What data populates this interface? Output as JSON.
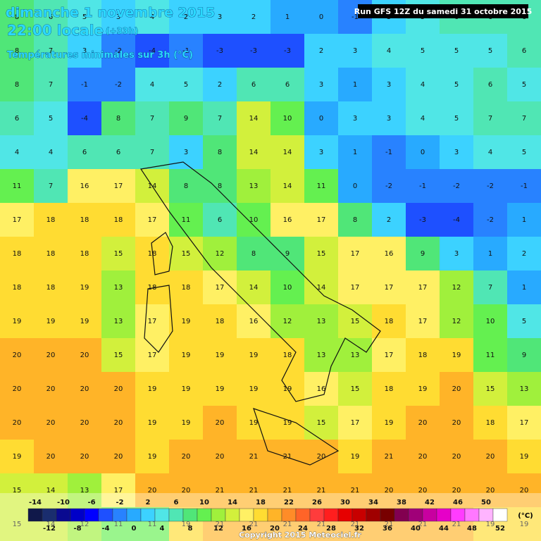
{
  "header": {
    "date": "dimanche 1 novembre 2015",
    "time": "22:00 locale",
    "offset": "(+33h)",
    "subtitle": "Températures minimales sur 3h (°C)",
    "run": "Run GFS 12Z du samedi 31 octobre 2015"
  },
  "grid": {
    "rows": [
      [
        8,
        6,
        5,
        3,
        4,
        2,
        3,
        2,
        1,
        0,
        -1,
        3,
        5,
        6,
        6,
        6
      ],
      [
        8,
        7,
        3,
        -2,
        -4,
        -1,
        -3,
        -3,
        -3,
        2,
        3,
        4,
        5,
        5,
        5,
        6
      ],
      [
        8,
        7,
        -1,
        -2,
        4,
        5,
        2,
        6,
        6,
        3,
        1,
        3,
        4,
        5,
        6,
        5
      ],
      [
        6,
        5,
        -4,
        8,
        7,
        9,
        7,
        14,
        10,
        0,
        3,
        3,
        4,
        5,
        7,
        7
      ],
      [
        4,
        4,
        6,
        6,
        7,
        3,
        8,
        14,
        14,
        3,
        1,
        -1,
        0,
        3,
        4,
        5
      ],
      [
        11,
        7,
        16,
        17,
        14,
        8,
        8,
        13,
        14,
        11,
        0,
        -2,
        -1,
        -2,
        -2,
        -1
      ],
      [
        17,
        18,
        18,
        18,
        17,
        11,
        6,
        10,
        16,
        17,
        8,
        2,
        -3,
        -4,
        -2,
        1
      ],
      [
        18,
        18,
        18,
        15,
        18,
        15,
        12,
        8,
        9,
        15,
        17,
        16,
        9,
        3,
        1,
        2
      ],
      [
        18,
        18,
        19,
        13,
        18,
        18,
        17,
        14,
        10,
        14,
        17,
        17,
        17,
        12,
        7,
        1
      ],
      [
        19,
        19,
        19,
        13,
        17,
        19,
        18,
        16,
        12,
        13,
        15,
        18,
        17,
        12,
        10,
        5
      ],
      [
        20,
        20,
        20,
        15,
        17,
        19,
        19,
        19,
        18,
        13,
        13,
        17,
        18,
        19,
        11,
        9
      ],
      [
        20,
        20,
        20,
        20,
        19,
        19,
        19,
        19,
        19,
        16,
        15,
        18,
        19,
        20,
        15,
        13
      ],
      [
        20,
        20,
        20,
        20,
        19,
        19,
        20,
        19,
        19,
        15,
        17,
        19,
        20,
        20,
        18,
        17
      ],
      [
        19,
        20,
        20,
        20,
        19,
        20,
        20,
        21,
        21,
        20,
        19,
        21,
        20,
        20,
        20,
        19
      ],
      [
        15,
        14,
        13,
        17,
        20,
        20,
        21,
        21,
        21,
        21,
        21,
        20,
        20,
        20,
        20,
        20
      ],
      [
        15,
        14,
        12,
        11,
        11,
        19,
        21,
        21,
        21,
        21,
        21,
        21,
        21,
        21,
        19,
        19
      ]
    ]
  },
  "legend": {
    "values": [
      -14,
      -12,
      -10,
      -8,
      -6,
      -4,
      -2,
      0,
      2,
      4,
      6,
      8,
      10,
      12,
      14,
      16,
      18,
      20,
      22,
      24,
      26,
      28,
      30,
      32,
      34,
      36,
      38,
      40,
      42,
      44,
      46,
      48,
      50,
      52
    ],
    "colors": [
      "#10184a",
      "#1a2d6e",
      "#0a0a90",
      "#0000c8",
      "#0000ff",
      "#1e50ff",
      "#2882ff",
      "#28aaff",
      "#3cd2ff",
      "#50e6e6",
      "#50e6b4",
      "#50e678",
      "#64f050",
      "#a0f03c",
      "#d2f03c",
      "#fff064",
      "#ffdc32",
      "#ffb428",
      "#ff8c28",
      "#ff6428",
      "#ff3c3c",
      "#ff1e1e",
      "#e60000",
      "#c80000",
      "#a00000",
      "#780000",
      "#820050",
      "#a00078",
      "#c800a0",
      "#e600c8",
      "#ff3cff",
      "#ff78ff",
      "#ffb4ff",
      "#ffffff"
    ],
    "unit": "(°C)"
  },
  "footer": {
    "copyright": "Copyright 2015 Meteociel.fr"
  }
}
